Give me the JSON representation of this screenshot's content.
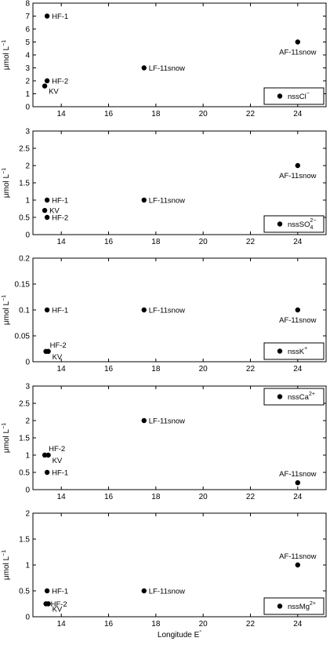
{
  "colors": {
    "marker": "#000000",
    "axis": "#000000",
    "background": "#ffffff"
  },
  "chart_data": [
    {
      "type": "scatter",
      "legend": "nssCl",
      "legend_superscript": "−",
      "legend_subscript": "",
      "legend_placement": "bottom-right",
      "ylabel": "μmol L",
      "ylabel_superscript": "−1",
      "xlim": [
        12.8,
        25.2
      ],
      "ylim": [
        0,
        8
      ],
      "xticks": [
        14,
        16,
        18,
        20,
        22,
        24
      ],
      "yticks": [
        0,
        1,
        2,
        3,
        4,
        5,
        6,
        7,
        8
      ],
      "ytick_labels": [
        "0",
        "1",
        "2",
        "3",
        "4",
        "5",
        "6",
        "7",
        "8"
      ],
      "grid": false,
      "points": [
        {
          "label": "HF-1",
          "x": 13.4,
          "y": 7,
          "label_pos": "right"
        },
        {
          "label": "HF-2",
          "x": 13.4,
          "y": 2,
          "label_pos": "right"
        },
        {
          "label": "KV",
          "x": 13.3,
          "y": 1.6,
          "label_pos": "below-right"
        },
        {
          "label": "LF-11snow",
          "x": 17.5,
          "y": 3,
          "label_pos": "right"
        },
        {
          "label": "AF-11snow",
          "x": 24.0,
          "y": 5,
          "label_pos": "below"
        }
      ]
    },
    {
      "type": "scatter",
      "legend": "nssSO",
      "legend_superscript": "2−",
      "legend_subscript": "4",
      "legend_placement": "bottom-right",
      "ylabel": "μmol L",
      "ylabel_superscript": "−1",
      "xlim": [
        12.8,
        25.2
      ],
      "ylim": [
        0,
        3
      ],
      "xticks": [
        14,
        16,
        18,
        20,
        22,
        24
      ],
      "yticks": [
        0,
        0.5,
        1,
        1.5,
        2,
        2.5,
        3
      ],
      "ytick_labels": [
        "0",
        "0.5",
        "1",
        "1.5",
        "2",
        "2.5",
        "3"
      ],
      "grid": false,
      "points": [
        {
          "label": "HF-1",
          "x": 13.4,
          "y": 1.0,
          "label_pos": "right"
        },
        {
          "label": "KV",
          "x": 13.3,
          "y": 0.7,
          "label_pos": "right"
        },
        {
          "label": "HF-2",
          "x": 13.4,
          "y": 0.5,
          "label_pos": "right"
        },
        {
          "label": "LF-11snow",
          "x": 17.5,
          "y": 1.0,
          "label_pos": "right"
        },
        {
          "label": "AF-11snow",
          "x": 24.0,
          "y": 2.0,
          "label_pos": "below"
        }
      ]
    },
    {
      "type": "scatter",
      "legend": "nssK",
      "legend_superscript": "+",
      "legend_subscript": "",
      "legend_placement": "bottom-right",
      "ylabel": "μmol L",
      "ylabel_superscript": "−1",
      "xlim": [
        12.8,
        25.2
      ],
      "ylim": [
        0,
        0.2
      ],
      "xticks": [
        14,
        16,
        18,
        20,
        22,
        24
      ],
      "yticks": [
        0,
        0.05,
        0.1,
        0.15,
        0.2
      ],
      "ytick_labels": [
        "0",
        "0.05",
        "0.1",
        "0.15",
        "0.2"
      ],
      "grid": false,
      "points": [
        {
          "label": "HF-1",
          "x": 13.4,
          "y": 0.1,
          "label_pos": "right"
        },
        {
          "label": "HF-2",
          "x": 13.35,
          "y": 0.02,
          "label_pos": "above-right"
        },
        {
          "label": "KV",
          "x": 13.45,
          "y": 0.02,
          "label_pos": "below-right"
        },
        {
          "label": "LF-11snow",
          "x": 17.5,
          "y": 0.1,
          "label_pos": "right"
        },
        {
          "label": "AF-11snow",
          "x": 24.0,
          "y": 0.1,
          "label_pos": "below"
        }
      ]
    },
    {
      "type": "scatter",
      "legend": "nssCa",
      "legend_superscript": "2+",
      "legend_subscript": "",
      "legend_placement": "top-right",
      "ylabel": "μmol L",
      "ylabel_superscript": "−1",
      "xlim": [
        12.8,
        25.2
      ],
      "ylim": [
        0,
        3
      ],
      "xticks": [
        14,
        16,
        18,
        20,
        22,
        24
      ],
      "yticks": [
        0,
        0.5,
        1,
        1.5,
        2,
        2.5,
        3
      ],
      "ytick_labels": [
        "0",
        "0.5",
        "1",
        "1.5",
        "2",
        "2.5",
        "3"
      ],
      "grid": false,
      "points": [
        {
          "label": "HF-2",
          "x": 13.3,
          "y": 1.0,
          "label_pos": "above-right"
        },
        {
          "label": "KV",
          "x": 13.45,
          "y": 1.0,
          "label_pos": "below-right"
        },
        {
          "label": "HF-1",
          "x": 13.4,
          "y": 0.5,
          "label_pos": "right"
        },
        {
          "label": "LF-11snow",
          "x": 17.5,
          "y": 2.0,
          "label_pos": "right"
        },
        {
          "label": "AF-11snow",
          "x": 24.0,
          "y": 0.2,
          "label_pos": "above"
        }
      ]
    },
    {
      "type": "scatter",
      "legend": "nssMg",
      "legend_superscript": "2+",
      "legend_subscript": "",
      "legend_placement": "bottom-right",
      "ylabel": "μmol L",
      "ylabel_superscript": "−1",
      "xlabel": "Longitude E",
      "xlabel_superscript": "°",
      "xlim": [
        12.8,
        25.2
      ],
      "ylim": [
        0,
        2
      ],
      "xticks": [
        14,
        16,
        18,
        20,
        22,
        24
      ],
      "yticks": [
        0,
        0.5,
        1,
        1.5,
        2
      ],
      "ytick_labels": [
        "0",
        "0.5",
        "1",
        "1.5",
        "2"
      ],
      "grid": false,
      "points": [
        {
          "label": "HF-1",
          "x": 13.4,
          "y": 0.5,
          "label_pos": "right"
        },
        {
          "label": "HF-2",
          "x": 13.35,
          "y": 0.25,
          "label_pos": "right"
        },
        {
          "label": "KV",
          "x": 13.45,
          "y": 0.25,
          "label_pos": "below-right"
        },
        {
          "label": "LF-11snow",
          "x": 17.5,
          "y": 0.5,
          "label_pos": "right"
        },
        {
          "label": "AF-11snow",
          "x": 24.0,
          "y": 1.0,
          "label_pos": "above"
        }
      ]
    }
  ]
}
